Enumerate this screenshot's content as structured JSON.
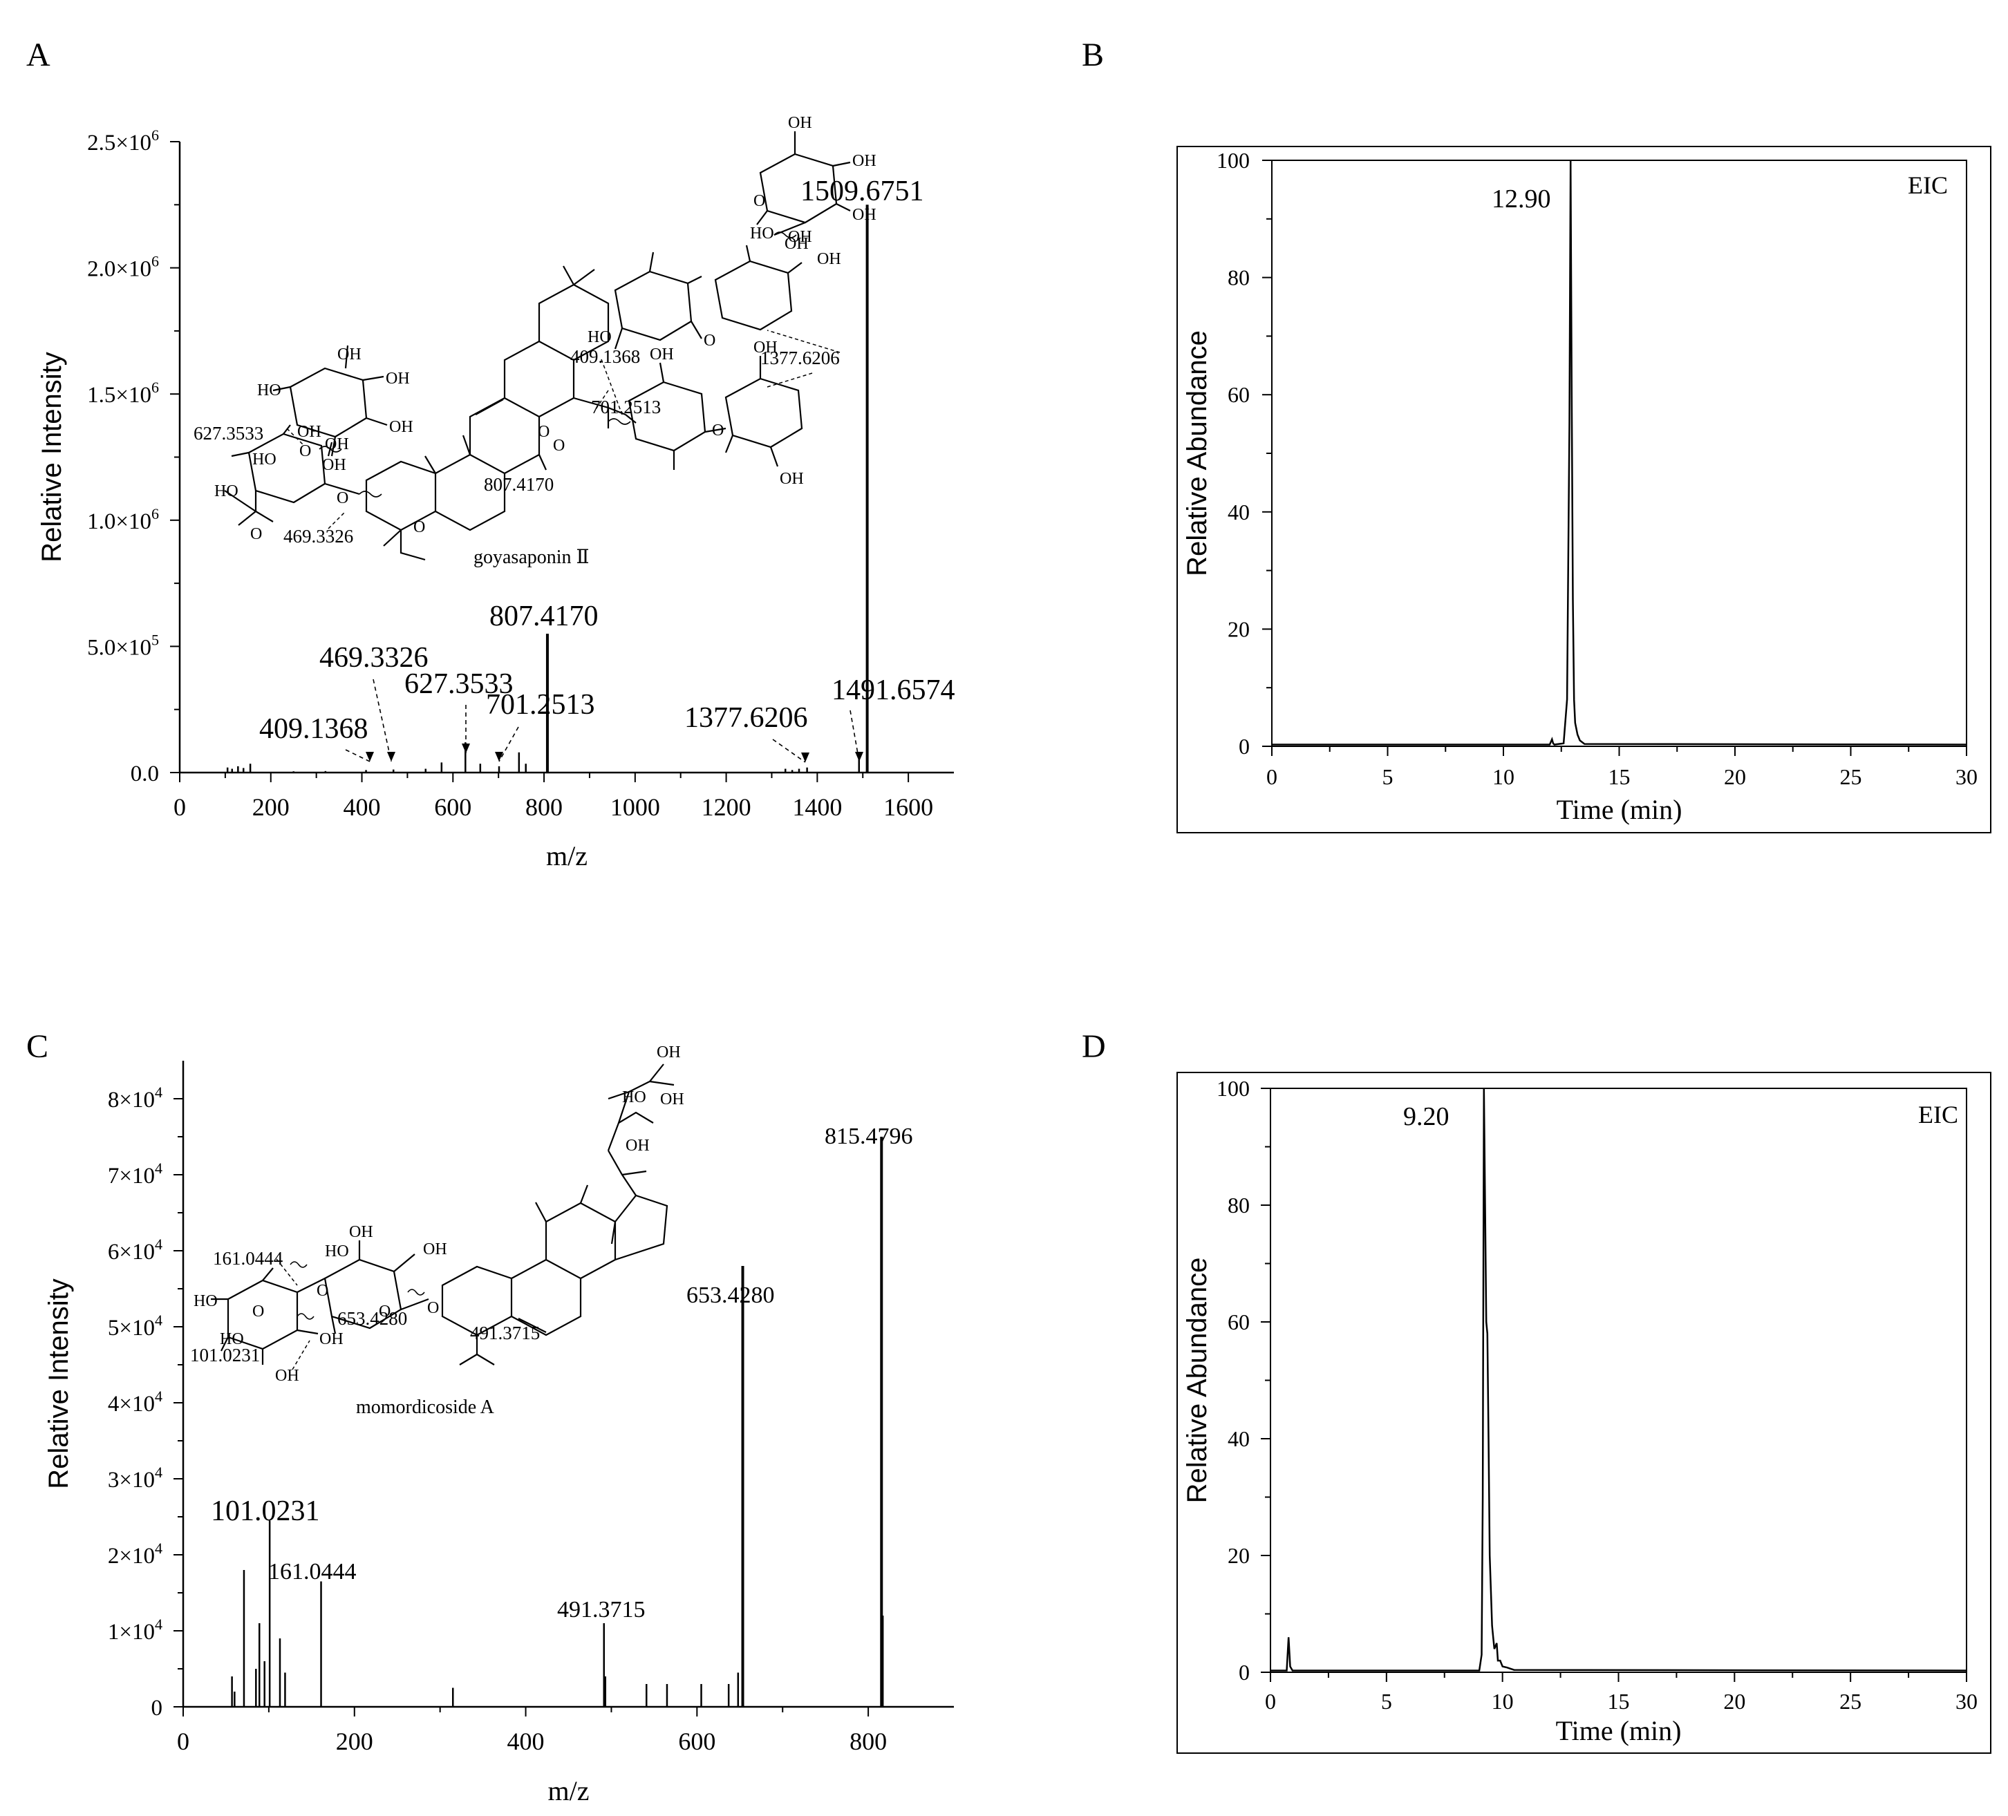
{
  "figure": {
    "panel_letters": [
      "A",
      "B",
      "C",
      "D"
    ]
  },
  "chart_data": [
    {
      "panel": "A",
      "type": "bar",
      "subtype": "mass-spectrum",
      "title": "",
      "compound": "goyasaponin Ⅱ",
      "xlabel": "m/z",
      "ylabel": "Relative Intensity",
      "xlim": [
        0,
        1700
      ],
      "ylim": [
        0,
        2500000
      ],
      "xticks": [
        0,
        200,
        400,
        600,
        800,
        1000,
        1200,
        1400,
        1600
      ],
      "yticks": [
        0,
        500000,
        1000000,
        1500000,
        2000000,
        2500000
      ],
      "ytick_labels": [
        "0.0",
        "5.0×10",
        "1.0×10",
        "1.5×10",
        "2.0×10",
        "2.5×10"
      ],
      "ytick_exponents": [
        "",
        "5",
        "6",
        "6",
        "6",
        "6"
      ],
      "peaks": [
        {
          "x": 105,
          "y": 20000
        },
        {
          "x": 115,
          "y": 15000
        },
        {
          "x": 128,
          "y": 25000
        },
        {
          "x": 140,
          "y": 18000
        },
        {
          "x": 155,
          "y": 35000
        },
        {
          "x": 250,
          "y": 5000
        },
        {
          "x": 320,
          "y": 6000
        },
        {
          "x": 409.1368,
          "y": 10000
        },
        {
          "x": 469.3326,
          "y": 12000
        },
        {
          "x": 540,
          "y": 15000
        },
        {
          "x": 575,
          "y": 40000
        },
        {
          "x": 627.3533,
          "y": 120000
        },
        {
          "x": 660,
          "y": 35000
        },
        {
          "x": 701.2513,
          "y": 25000
        },
        {
          "x": 745,
          "y": 80000
        },
        {
          "x": 760,
          "y": 35000
        },
        {
          "x": 807.417,
          "y": 550000
        },
        {
          "x": 1330,
          "y": 15000
        },
        {
          "x": 1345,
          "y": 10000
        },
        {
          "x": 1360,
          "y": 15000
        },
        {
          "x": 1377.6206,
          "y": 20000
        },
        {
          "x": 1491.6574,
          "y": 60000
        },
        {
          "x": 1509.6751,
          "y": 2250000
        }
      ],
      "peak_labels": [
        {
          "text": "1509.6751",
          "x": 1509.6751
        },
        {
          "text": "807.4170",
          "x": 807.417
        },
        {
          "text": "469.3326",
          "x": 469.3326
        },
        {
          "text": "627.3533",
          "x": 627.3533
        },
        {
          "text": "701.2513",
          "x": 701.2513
        },
        {
          "text": "409.1368",
          "x": 409.1368
        },
        {
          "text": "1377.6206",
          "x": 1377.6206
        },
        {
          "text": "1491.6574",
          "x": 1491.6574
        }
      ],
      "structure_labels": [
        "409.1368",
        "1377.6206",
        "701.2513",
        "627.3533",
        "807.4170",
        "469.3326"
      ],
      "structure_groups": [
        "OH",
        "OH",
        "OH",
        "OH",
        "OH",
        "HO",
        "OH",
        "OH",
        "HO",
        "OH",
        "OH",
        "OH",
        "OH",
        "HO",
        "OH",
        "OH",
        "OH",
        "OH",
        "HO",
        "HO",
        "O",
        "O",
        "O",
        "O",
        "O",
        "O",
        "O",
        "O",
        "O"
      ]
    },
    {
      "panel": "B",
      "type": "line",
      "subtype": "chromatogram",
      "title": "",
      "legend": "EIC",
      "xlabel": "Time (min)",
      "ylabel": "Relative Abundance",
      "xlim": [
        0,
        30
      ],
      "ylim": [
        0,
        100
      ],
      "xticks": [
        0,
        5,
        10,
        15,
        20,
        25,
        30
      ],
      "yticks": [
        0,
        20,
        40,
        60,
        80,
        100
      ],
      "peak_label": "12.90",
      "x": [
        0,
        12.0,
        12.1,
        12.15,
        12.2,
        12.6,
        12.75,
        12.85,
        12.9,
        12.95,
        13.0,
        13.05,
        13.1,
        13.2,
        13.3,
        13.5,
        30
      ],
      "y": [
        0.3,
        0.3,
        1.2,
        0.5,
        0.3,
        0.5,
        8,
        55,
        100,
        60,
        25,
        8,
        4,
        2,
        1,
        0.4,
        0.3
      ]
    },
    {
      "panel": "C",
      "type": "bar",
      "subtype": "mass-spectrum",
      "title": "",
      "compound": "momordicoside A",
      "xlabel": "m/z",
      "ylabel": "Relative Intensity",
      "xlim": [
        0,
        900
      ],
      "ylim": [
        0,
        85000
      ],
      "xticks": [
        0,
        200,
        400,
        600,
        800
      ],
      "yticks": [
        0,
        10000,
        20000,
        30000,
        40000,
        50000,
        60000,
        70000,
        80000
      ],
      "ytick_labels": [
        "0",
        "1×10",
        "2×10",
        "3×10",
        "4×10",
        "5×10",
        "6×10",
        "7×10",
        "8×10"
      ],
      "ytick_exponents": [
        "",
        "4",
        "4",
        "4",
        "4",
        "4",
        "4",
        "4",
        "4"
      ],
      "peaks": [
        {
          "x": 57,
          "y": 4000
        },
        {
          "x": 60,
          "y": 2000
        },
        {
          "x": 71,
          "y": 18000
        },
        {
          "x": 85,
          "y": 5000
        },
        {
          "x": 89,
          "y": 11000
        },
        {
          "x": 95,
          "y": 6000
        },
        {
          "x": 101.0231,
          "y": 24500
        },
        {
          "x": 113,
          "y": 9000
        },
        {
          "x": 119,
          "y": 4500
        },
        {
          "x": 161.0444,
          "y": 16500
        },
        {
          "x": 315,
          "y": 2500
        },
        {
          "x": 491.3715,
          "y": 11000
        },
        {
          "x": 493,
          "y": 4000
        },
        {
          "x": 541,
          "y": 3000
        },
        {
          "x": 565,
          "y": 3000
        },
        {
          "x": 605,
          "y": 3000
        },
        {
          "x": 637,
          "y": 3000
        },
        {
          "x": 648,
          "y": 4500
        },
        {
          "x": 653.428,
          "y": 58000
        },
        {
          "x": 815.4796,
          "y": 75000
        },
        {
          "x": 817,
          "y": 12000
        }
      ],
      "peak_labels": [
        {
          "text": "815.4796",
          "x": 815.4796
        },
        {
          "text": "653.4280",
          "x": 653.428
        },
        {
          "text": "101.0231",
          "x": 101.0231
        },
        {
          "text": "161.0444",
          "x": 161.0444
        },
        {
          "text": "491.3715",
          "x": 491.3715
        }
      ],
      "structure_labels": [
        "161.0444",
        "653.4280",
        "491.3715",
        "101.0231"
      ],
      "structure_groups": [
        "OH",
        "HO",
        "OH",
        "OH",
        "OH",
        "HO",
        "OH",
        "HO",
        "OH",
        "HO",
        "OH",
        "O",
        "O",
        "O",
        "O"
      ]
    },
    {
      "panel": "D",
      "type": "line",
      "subtype": "chromatogram",
      "title": "",
      "legend": "EIC",
      "xlabel": "Time (min)",
      "ylabel": "Relative Abundance",
      "xlim": [
        0,
        30
      ],
      "ylim": [
        0,
        100
      ],
      "xticks": [
        0,
        5,
        10,
        15,
        20,
        25,
        30
      ],
      "yticks": [
        0,
        20,
        40,
        60,
        80,
        100
      ],
      "peak_label": "9.20",
      "x": [
        0,
        0.7,
        0.78,
        0.85,
        0.95,
        9.0,
        9.1,
        9.15,
        9.2,
        9.25,
        9.3,
        9.35,
        9.4,
        9.45,
        9.5,
        9.55,
        9.6,
        9.65,
        9.75,
        9.8,
        9.9,
        10.0,
        10.2,
        10.5,
        30
      ],
      "y": [
        0.3,
        0.3,
        6,
        1,
        0.3,
        0.3,
        3,
        30,
        100,
        80,
        60,
        58,
        40,
        20,
        14,
        8,
        6,
        4,
        5,
        2,
        2,
        1,
        0.8,
        0.4,
        0.3
      ]
    }
  ]
}
